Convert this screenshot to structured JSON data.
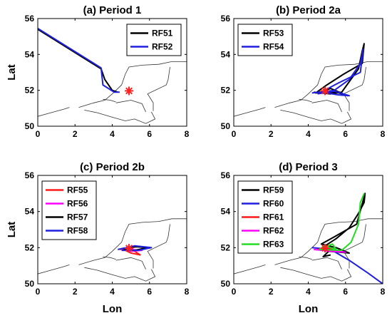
{
  "chart_data": [
    {
      "type": "line",
      "title": "(a)   Period 1",
      "xlabel": "",
      "ylabel": "Lat",
      "xlim": [
        0,
        8
      ],
      "ylim": [
        50,
        56
      ],
      "xticks": [
        "0",
        "2",
        "4",
        "6",
        "8"
      ],
      "yticks": [
        "50",
        "52",
        "54",
        "56"
      ],
      "legend_position": "top-right",
      "series": [
        {
          "name": "RF51",
          "color": "#000000",
          "points": [
            [
              0,
              55.4
            ],
            [
              3.4,
              53.2
            ],
            [
              3.6,
              52.6
            ],
            [
              4.0,
              52.0
            ],
            [
              4.3,
              51.9
            ]
          ]
        },
        {
          "name": "RF52",
          "color": "#1f1fe0",
          "points": [
            [
              0,
              55.45
            ],
            [
              3.4,
              53.25
            ],
            [
              3.5,
              52.3
            ],
            [
              4.1,
              51.9
            ],
            [
              4.4,
              51.9
            ]
          ]
        }
      ],
      "marker": {
        "symbol": "*",
        "color": "#ff2020",
        "lon": 4.9,
        "lat": 51.97
      }
    },
    {
      "type": "line",
      "title": "(b)   Period 2a",
      "xlabel": "",
      "ylabel": "",
      "xlim": [
        0,
        8
      ],
      "ylim": [
        50,
        56
      ],
      "xticks": [
        "0",
        "2",
        "4",
        "6",
        "8"
      ],
      "yticks": [
        "50",
        "52",
        "54",
        "56"
      ],
      "legend_position": "top-left",
      "series": [
        {
          "name": "RF53",
          "color": "#000000",
          "points": [
            [
              4.3,
              51.9
            ],
            [
              5.2,
              51.8
            ],
            [
              5.8,
              51.9
            ],
            [
              6.7,
              53.2
            ],
            [
              6.9,
              54.2
            ],
            [
              7.0,
              54.6
            ],
            [
              6.9,
              53.5
            ],
            [
              5.9,
              52.9
            ],
            [
              5.0,
              52.3
            ],
            [
              4.4,
              51.85
            ],
            [
              5.5,
              51.9
            ],
            [
              6.1,
              51.7
            ],
            [
              5.2,
              52.1
            ],
            [
              4.6,
              51.9
            ]
          ]
        },
        {
          "name": "RF54",
          "color": "#1f1fe0",
          "points": [
            [
              4.2,
              51.85
            ],
            [
              5.4,
              52.0
            ],
            [
              6.2,
              52.6
            ],
            [
              6.8,
              53.5
            ],
            [
              6.95,
              54.3
            ],
            [
              6.8,
              53.0
            ],
            [
              5.6,
              52.4
            ],
            [
              4.7,
              51.9
            ],
            [
              5.6,
              51.75
            ],
            [
              6.2,
              51.7
            ],
            [
              5.4,
              51.95
            ],
            [
              4.5,
              51.8
            ]
          ]
        }
      ],
      "marker": {
        "symbol": "*",
        "color": "#ff2020",
        "lon": 4.9,
        "lat": 51.97
      }
    },
    {
      "type": "line",
      "title": "(c)   Period 2b",
      "xlabel": "",
      "ylabel": "Lat",
      "xlim": [
        0,
        8
      ],
      "ylim": [
        50,
        56
      ],
      "xticks": [
        "0",
        "2",
        "4",
        "6",
        "8"
      ],
      "yticks": [
        "50",
        "52",
        "54",
        "56"
      ],
      "legend_position": "top-left",
      "series": [
        {
          "name": "RF55",
          "color": "#ff1a1a",
          "points": [
            [
              4.4,
              51.9
            ],
            [
              4.9,
              52.0
            ],
            [
              5.5,
              51.6
            ],
            [
              5.0,
              51.7
            ],
            [
              4.6,
              51.9
            ]
          ]
        },
        {
          "name": "RF56",
          "color": "#ff00ff",
          "points": [
            [
              4.5,
              51.85
            ],
            [
              5.0,
              51.9
            ],
            [
              5.6,
              51.85
            ],
            [
              5.0,
              51.8
            ],
            [
              4.7,
              51.9
            ]
          ]
        },
        {
          "name": "RF57",
          "color": "#000000",
          "points": [
            [
              4.5,
              51.95
            ],
            [
              5.3,
              52.05
            ],
            [
              5.9,
              52.0
            ],
            [
              5.2,
              51.85
            ],
            [
              4.6,
              51.9
            ]
          ]
        },
        {
          "name": "RF58",
          "color": "#1f1fe0",
          "points": [
            [
              4.3,
              51.9
            ],
            [
              5.2,
              52.1
            ],
            [
              6.1,
              52.0
            ],
            [
              5.4,
              51.85
            ],
            [
              4.5,
              51.85
            ]
          ]
        }
      ],
      "marker": {
        "symbol": "*",
        "color": "#ff2020",
        "lon": 4.9,
        "lat": 51.97
      }
    },
    {
      "type": "line",
      "title": "(d)   Period 3",
      "xlabel": "Lon",
      "ylabel": "",
      "xlim": [
        0,
        8
      ],
      "ylim": [
        50,
        56
      ],
      "xticks": [
        "0",
        "2",
        "4",
        "6",
        "8"
      ],
      "yticks": [
        "50",
        "52",
        "54",
        "56"
      ],
      "legend_position": "top-left",
      "series": [
        {
          "name": "RF59",
          "color": "#000000",
          "points": [
            [
              4.6,
              51.9
            ],
            [
              5.5,
              52.5
            ],
            [
              6.2,
              53.1
            ],
            [
              6.7,
              53.9
            ],
            [
              7.0,
              54.5
            ],
            [
              7.05,
              55.0
            ],
            [
              6.6,
              53.3
            ],
            [
              5.4,
              52.6
            ],
            [
              4.7,
              52.2
            ],
            [
              5.5,
              52.0
            ],
            [
              6.2,
              51.7
            ],
            [
              5.1,
              51.8
            ],
            [
              4.8,
              51.5
            ],
            [
              5.2,
              51.6
            ]
          ]
        },
        {
          "name": "RF60",
          "color": "#1f1fe0",
          "points": [
            [
              4.2,
              52.0
            ],
            [
              5.2,
              51.9
            ],
            [
              6.2,
              51.3
            ],
            [
              7.2,
              50.6
            ],
            [
              8.0,
              50.0
            ]
          ]
        },
        {
          "name": "RF61",
          "color": "#ff1a1a",
          "points": [
            [
              4.5,
              51.9
            ],
            [
              5.0,
              52.0
            ],
            [
              5.4,
              51.9
            ],
            [
              5.0,
              51.8
            ]
          ]
        },
        {
          "name": "RF62",
          "color": "#ff00ff",
          "points": [
            [
              4.3,
              51.9
            ],
            [
              5.2,
              51.8
            ],
            [
              6.0,
              51.75
            ],
            [
              5.3,
              51.85
            ]
          ]
        },
        {
          "name": "RF63",
          "color": "#22dd22",
          "points": [
            [
              4.8,
              52.0
            ],
            [
              5.3,
              52.2
            ],
            [
              5.5,
              51.9
            ],
            [
              4.9,
              52.1
            ],
            [
              4.6,
              51.9
            ],
            [
              5.8,
              51.85
            ],
            [
              6.3,
              52.3
            ],
            [
              6.7,
              53.3
            ],
            [
              6.8,
              54.5
            ],
            [
              7.0,
              55.0
            ]
          ]
        }
      ],
      "marker": {
        "symbol": "*",
        "color": "#ff2020",
        "lon": 4.9,
        "lat": 51.97
      }
    }
  ]
}
